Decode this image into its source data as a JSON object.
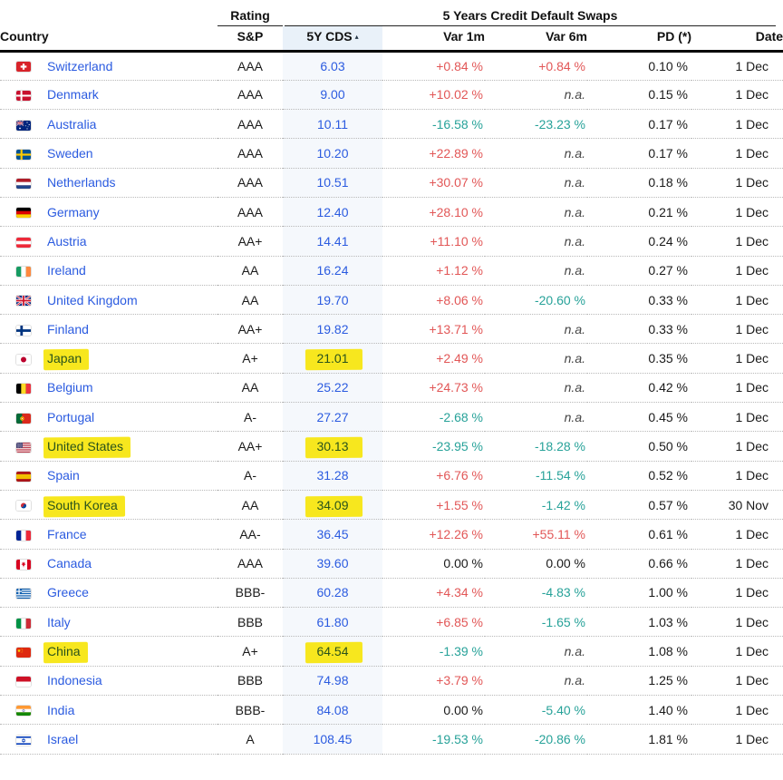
{
  "header": {
    "group_rating": "Rating",
    "group_cds": "5 Years Credit Default Swaps",
    "sort_icon": "▴",
    "columns": {
      "country": "Country",
      "sp": "S&P",
      "cds": "5Y CDS",
      "var1m": "Var 1m",
      "var6m": "Var 6m",
      "pd": "PD (*)",
      "date": "Date"
    }
  },
  "colors": {
    "link_blue": "#2b5be0",
    "var_up_red": "#e25757",
    "var_down_teal": "#27a299",
    "highlight_yellow": "#f7e71e",
    "cds_column_bg": "#f5f8fc",
    "cds_header_bg": "#e9f1f9"
  },
  "chart_data": {
    "type": "table",
    "title": "5 Years Credit Default Swaps",
    "columns": [
      "Country",
      "S&P",
      "5Y CDS",
      "Var 1m",
      "Var 6m",
      "PD (*)",
      "Date"
    ],
    "rows": [
      {
        "flag": "ch",
        "country": "Switzerland",
        "rating": "AAA",
        "cds": "6.03",
        "var1m": "+0.84 %",
        "var6m": "+0.84 %",
        "pd": "0.10 %",
        "date": "1 Dec",
        "highlighted": false
      },
      {
        "flag": "dk",
        "country": "Denmark",
        "rating": "AAA",
        "cds": "9.00",
        "var1m": "+10.02 %",
        "var6m": "n.a.",
        "pd": "0.15 %",
        "date": "1 Dec",
        "highlighted": false
      },
      {
        "flag": "au",
        "country": "Australia",
        "rating": "AAA",
        "cds": "10.11",
        "var1m": "-16.58 %",
        "var6m": "-23.23 %",
        "pd": "0.17 %",
        "date": "1 Dec",
        "highlighted": false
      },
      {
        "flag": "se",
        "country": "Sweden",
        "rating": "AAA",
        "cds": "10.20",
        "var1m": "+22.89 %",
        "var6m": "n.a.",
        "pd": "0.17 %",
        "date": "1 Dec",
        "highlighted": false
      },
      {
        "flag": "nl",
        "country": "Netherlands",
        "rating": "AAA",
        "cds": "10.51",
        "var1m": "+30.07 %",
        "var6m": "n.a.",
        "pd": "0.18 %",
        "date": "1 Dec",
        "highlighted": false
      },
      {
        "flag": "de",
        "country": "Germany",
        "rating": "AAA",
        "cds": "12.40",
        "var1m": "+28.10 %",
        "var6m": "n.a.",
        "pd": "0.21 %",
        "date": "1 Dec",
        "highlighted": false
      },
      {
        "flag": "at",
        "country": "Austria",
        "rating": "AA+",
        "cds": "14.41",
        "var1m": "+11.10 %",
        "var6m": "n.a.",
        "pd": "0.24 %",
        "date": "1 Dec",
        "highlighted": false
      },
      {
        "flag": "ie",
        "country": "Ireland",
        "rating": "AA",
        "cds": "16.24",
        "var1m": "+1.12 %",
        "var6m": "n.a.",
        "pd": "0.27 %",
        "date": "1 Dec",
        "highlighted": false
      },
      {
        "flag": "gb",
        "country": "United Kingdom",
        "rating": "AA",
        "cds": "19.70",
        "var1m": "+8.06 %",
        "var6m": "-20.60 %",
        "pd": "0.33 %",
        "date": "1 Dec",
        "highlighted": false
      },
      {
        "flag": "fi",
        "country": "Finland",
        "rating": "AA+",
        "cds": "19.82",
        "var1m": "+13.71 %",
        "var6m": "n.a.",
        "pd": "0.33 %",
        "date": "1 Dec",
        "highlighted": false
      },
      {
        "flag": "jp",
        "country": "Japan",
        "rating": "A+",
        "cds": "21.01",
        "var1m": "+2.49 %",
        "var6m": "n.a.",
        "pd": "0.35 %",
        "date": "1 Dec",
        "highlighted": true
      },
      {
        "flag": "be",
        "country": "Belgium",
        "rating": "AA",
        "cds": "25.22",
        "var1m": "+24.73 %",
        "var6m": "n.a.",
        "pd": "0.42 %",
        "date": "1 Dec",
        "highlighted": false
      },
      {
        "flag": "pt",
        "country": "Portugal",
        "rating": "A-",
        "cds": "27.27",
        "var1m": "-2.68 %",
        "var6m": "n.a.",
        "pd": "0.45 %",
        "date": "1 Dec",
        "highlighted": false
      },
      {
        "flag": "us",
        "country": "United States",
        "rating": "AA+",
        "cds": "30.13",
        "var1m": "-23.95 %",
        "var6m": "-18.28 %",
        "pd": "0.50 %",
        "date": "1 Dec",
        "highlighted": true
      },
      {
        "flag": "es",
        "country": "Spain",
        "rating": "A-",
        "cds": "31.28",
        "var1m": "+6.76 %",
        "var6m": "-11.54 %",
        "pd": "0.52 %",
        "date": "1 Dec",
        "highlighted": false
      },
      {
        "flag": "kr",
        "country": "South Korea",
        "rating": "AA",
        "cds": "34.09",
        "var1m": "+1.55 %",
        "var6m": "-1.42 %",
        "pd": "0.57 %",
        "date": "30 Nov",
        "highlighted": true
      },
      {
        "flag": "fr",
        "country": "France",
        "rating": "AA-",
        "cds": "36.45",
        "var1m": "+12.26 %",
        "var6m": "+55.11 %",
        "pd": "0.61 %",
        "date": "1 Dec",
        "highlighted": false
      },
      {
        "flag": "ca",
        "country": "Canada",
        "rating": "AAA",
        "cds": "39.60",
        "var1m": "0.00 %",
        "var6m": "0.00 %",
        "pd": "0.66 %",
        "date": "1 Dec",
        "highlighted": false
      },
      {
        "flag": "gr",
        "country": "Greece",
        "rating": "BBB-",
        "cds": "60.28",
        "var1m": "+4.34 %",
        "var6m": "-4.83 %",
        "pd": "1.00 %",
        "date": "1 Dec",
        "highlighted": false
      },
      {
        "flag": "it",
        "country": "Italy",
        "rating": "BBB",
        "cds": "61.80",
        "var1m": "+6.85 %",
        "var6m": "-1.65 %",
        "pd": "1.03 %",
        "date": "1 Dec",
        "highlighted": false
      },
      {
        "flag": "cn",
        "country": "China",
        "rating": "A+",
        "cds": "64.54",
        "var1m": "-1.39 %",
        "var6m": "n.a.",
        "pd": "1.08 %",
        "date": "1 Dec",
        "highlighted": true
      },
      {
        "flag": "id",
        "country": "Indonesia",
        "rating": "BBB",
        "cds": "74.98",
        "var1m": "+3.79 %",
        "var6m": "n.a.",
        "pd": "1.25 %",
        "date": "1 Dec",
        "highlighted": false
      },
      {
        "flag": "in",
        "country": "India",
        "rating": "BBB-",
        "cds": "84.08",
        "var1m": "0.00 %",
        "var6m": "-5.40 %",
        "pd": "1.40 %",
        "date": "1 Dec",
        "highlighted": false
      },
      {
        "flag": "il",
        "country": "Israel",
        "rating": "A",
        "cds": "108.45",
        "var1m": "-19.53 %",
        "var6m": "-20.86 %",
        "pd": "1.81 %",
        "date": "1 Dec",
        "highlighted": false
      }
    ]
  }
}
